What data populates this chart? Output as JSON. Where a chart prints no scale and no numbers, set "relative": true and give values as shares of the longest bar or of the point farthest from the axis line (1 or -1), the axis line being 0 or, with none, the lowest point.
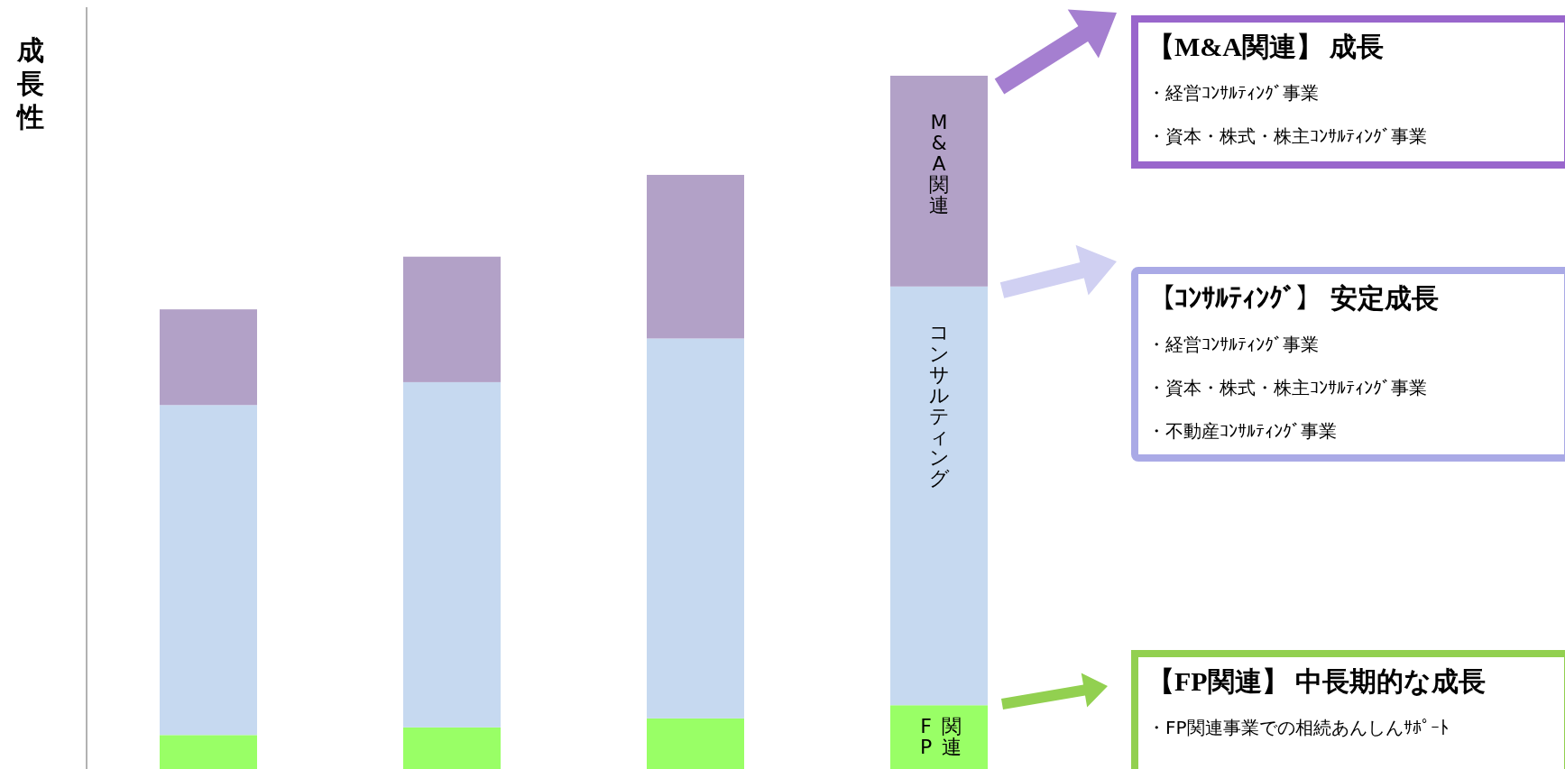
{
  "chart_data": {
    "type": "bar",
    "stacked": true,
    "relative": true,
    "ylabel": "成長性",
    "categories": [
      null,
      null,
      null,
      null
    ],
    "series": [
      {
        "name": "FP関連",
        "color": "#99ff66",
        "values": [
          0.049,
          0.06,
          0.073,
          0.092
        ]
      },
      {
        "name": "コンサルティング",
        "color": "#c6d9f0",
        "values": [
          0.476,
          0.498,
          0.548,
          0.604
        ]
      },
      {
        "name": "M&A関連",
        "color": "#b2a1c7",
        "values": [
          0.138,
          0.181,
          0.236,
          0.304
        ]
      }
    ],
    "annotations": [
      "【M&A関連】 成長",
      "・経営ｺﾝｻﾙﾃｨﾝｸﾞ事業",
      "・資本・株式・株主ｺﾝｻﾙﾃｨﾝｸﾞ事業",
      "【ｺﾝｻﾙﾃｨﾝｸﾞ】 安定成長",
      "・経営ｺﾝｻﾙﾃｨﾝｸﾞ事業",
      "・資本・株式・株主ｺﾝｻﾙﾃｨﾝｸﾞ事業",
      "・不動産ｺﾝｻﾙﾃｨﾝｸﾞ事業",
      "【FP関連】 中長期的な成長",
      "・FP関連事業での相続あんしんｻﾎﾟｰﾄ"
    ]
  }
}
